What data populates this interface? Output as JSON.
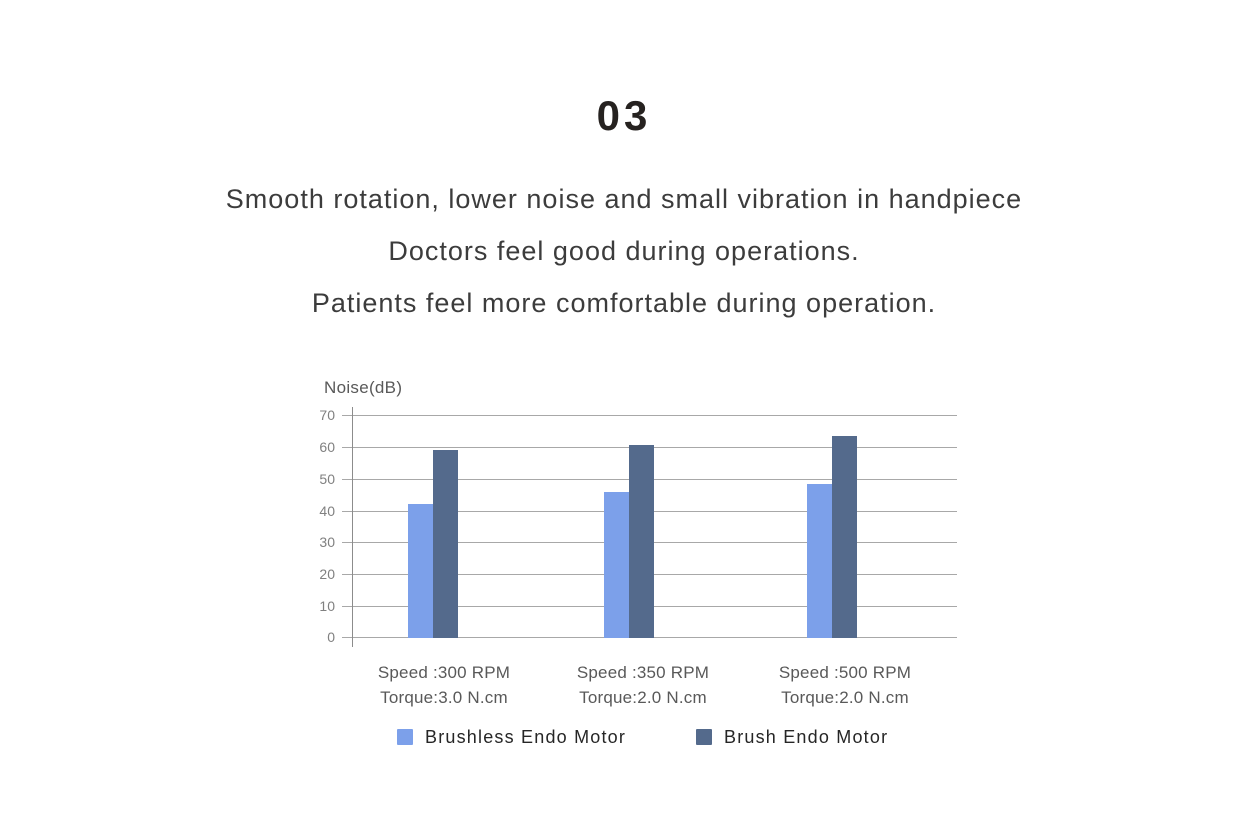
{
  "page": {
    "section_number": "03",
    "lines": [
      "Smooth rotation, lower noise and small vibration in handpiece",
      "Doctors feel good during operations.",
      "Patients feel more comfortable during operation."
    ]
  },
  "chart_data": {
    "type": "bar",
    "axis_title": "Noise(dB)",
    "xlabel": "",
    "ylabel": "Noise(dB)",
    "ylim": [
      0,
      70
    ],
    "ytick_step": 10,
    "yticks": [
      "70",
      "60",
      "50",
      "40",
      "30",
      "20",
      "10",
      "0"
    ],
    "grid": true,
    "legend_position": "bottom",
    "groups": [
      {
        "line1": "Speed :300 RPM",
        "line2": "Torque:3.0 N.cm"
      },
      {
        "line1": "Speed :350 RPM",
        "line2": "Torque:2.0 N.cm"
      },
      {
        "line1": "Speed :500 RPM",
        "line2": "Torque:2.0 N.cm"
      }
    ],
    "series": [
      {
        "name": "Brushless Endo Motor",
        "color": "#7CA0EA",
        "values": [
          42,
          46,
          48.5
        ]
      },
      {
        "name": "Brush Endo Motor",
        "color": "#546A8C",
        "values": [
          59,
          60.5,
          63.5
        ]
      }
    ],
    "colors": {
      "gridline": "#a8a8a8",
      "axis_line": "#8c8c8c",
      "tick_label": "#808080",
      "axis_label": "#595959",
      "text": "#3c3c3c"
    }
  }
}
